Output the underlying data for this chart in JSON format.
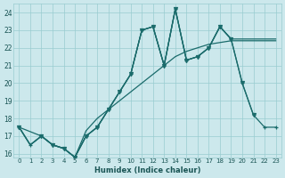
{
  "xlabel": "Humidex (Indice chaleur)",
  "bg_color": "#cce8ec",
  "grid_color": "#99ccd0",
  "line_color": "#1a6b6b",
  "xlim": [
    -0.5,
    23.5
  ],
  "ylim": [
    15.8,
    24.5
  ],
  "xticks": [
    0,
    1,
    2,
    3,
    4,
    5,
    6,
    7,
    8,
    9,
    10,
    11,
    12,
    13,
    14,
    15,
    16,
    17,
    18,
    19,
    20,
    21,
    22,
    23
  ],
  "yticks": [
    16,
    17,
    18,
    19,
    20,
    21,
    22,
    23,
    24
  ],
  "line1_x": [
    0,
    1,
    2,
    3,
    4,
    5,
    6,
    7,
    8,
    9,
    10,
    11,
    12,
    13,
    14,
    15,
    16,
    17,
    18,
    19,
    20,
    21,
    22,
    23
  ],
  "line1_y": [
    17.5,
    16.5,
    17.0,
    16.5,
    16.3,
    15.8,
    17.3,
    18.0,
    18.5,
    19.0,
    19.5,
    20.0,
    20.5,
    21.0,
    21.5,
    21.8,
    22.0,
    22.2,
    22.3,
    22.4,
    22.4,
    22.4,
    22.4,
    22.4
  ],
  "line2_x": [
    0,
    1,
    2,
    3,
    4,
    5,
    6,
    7,
    8,
    9,
    10,
    11,
    12,
    13,
    14,
    15,
    16,
    17,
    18,
    19,
    20,
    21,
    22,
    23
  ],
  "line2_y": [
    17.5,
    16.5,
    17.0,
    16.5,
    16.3,
    15.8,
    17.0,
    17.5,
    18.5,
    19.5,
    20.5,
    23.0,
    23.2,
    21.0,
    24.2,
    21.3,
    21.5,
    22.0,
    23.2,
    22.5,
    22.5,
    22.5,
    22.5,
    22.5
  ],
  "line3_x": [
    0,
    1,
    2,
    3,
    4,
    5,
    6,
    7,
    8,
    9,
    10,
    11,
    12,
    13,
    14,
    15,
    16,
    17,
    18,
    19,
    20,
    21,
    22,
    23
  ],
  "line3_y": [
    17.5,
    16.5,
    17.0,
    16.5,
    16.3,
    15.8,
    17.0,
    17.5,
    18.5,
    19.5,
    20.5,
    23.0,
    23.2,
    21.0,
    24.2,
    21.3,
    21.5,
    22.0,
    23.2,
    22.5,
    20.0,
    18.2,
    17.5,
    17.5
  ],
  "line4_x": [
    0,
    2,
    3,
    4,
    5,
    6,
    7,
    8,
    9,
    10,
    11,
    12,
    13,
    14,
    15,
    16,
    17,
    18,
    19,
    20,
    21
  ],
  "line4_y": [
    17.5,
    17.0,
    16.5,
    16.3,
    15.8,
    17.0,
    17.5,
    18.5,
    19.5,
    20.5,
    23.0,
    23.2,
    21.0,
    24.2,
    21.3,
    21.5,
    22.0,
    23.2,
    22.5,
    20.0,
    18.2
  ]
}
